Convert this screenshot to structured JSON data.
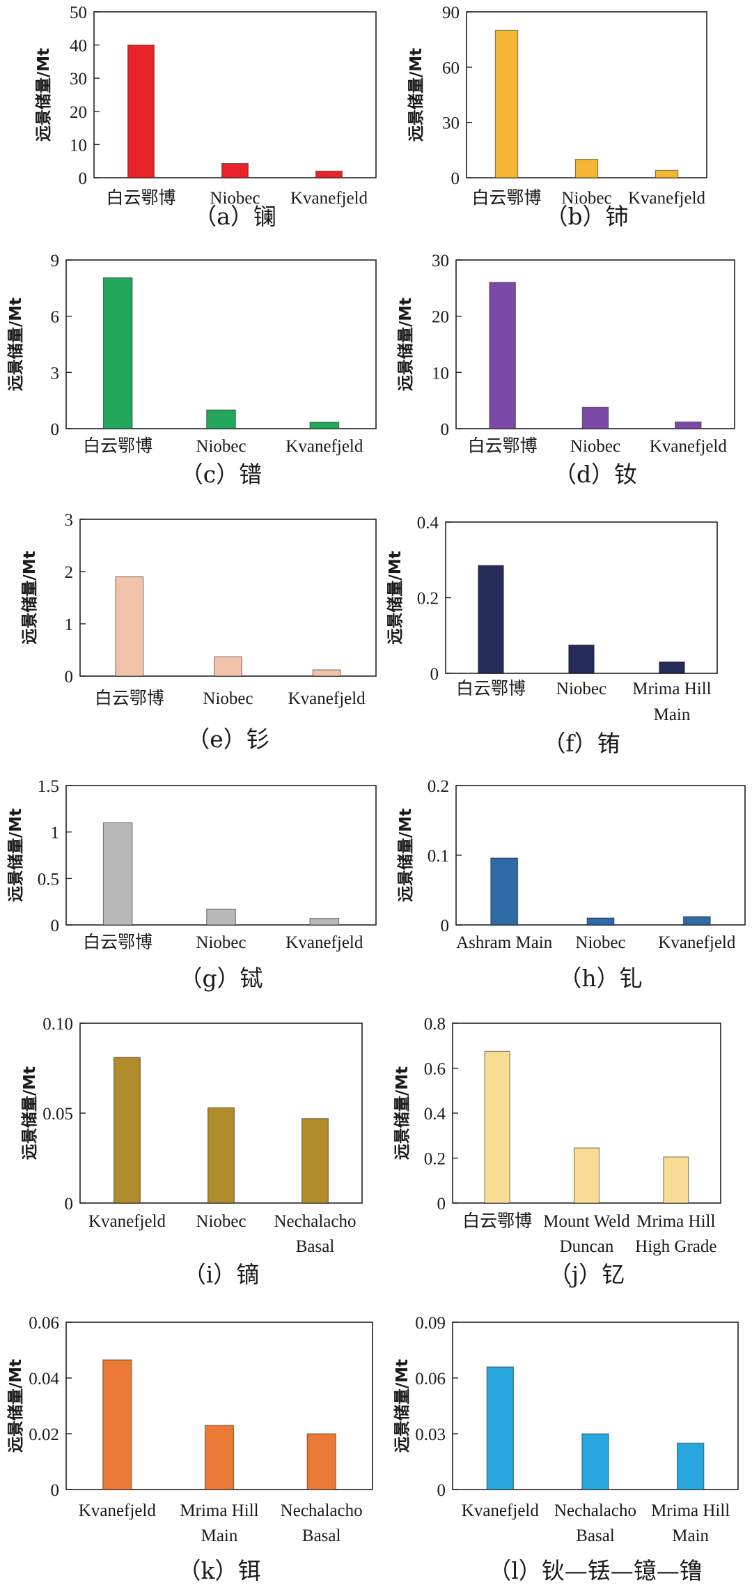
{
  "chart_data": [
    {
      "type": "bar",
      "title": "（a）镧",
      "ylabel": "远景储量/Mt",
      "ylim": [
        0,
        50
      ],
      "yticks": [
        "0",
        "10",
        "20",
        "30",
        "40",
        "50"
      ],
      "categories": [
        [
          "白云鄂博"
        ],
        [
          "Niobec"
        ],
        [
          "Kvanefjeld"
        ]
      ],
      "values": [
        40,
        4.3,
        2
      ],
      "color": "#e8242a"
    },
    {
      "type": "bar",
      "title": "（b）铈",
      "ylabel": "远景储量/Mt",
      "ylim": [
        0,
        90
      ],
      "yticks": [
        "0",
        "30",
        "60",
        "90"
      ],
      "categories": [
        [
          "白云鄂博"
        ],
        [
          "Niobec"
        ],
        [
          "Kvanefjeld"
        ]
      ],
      "values": [
        80,
        10,
        4
      ],
      "color": "#f5b731"
    },
    {
      "type": "bar",
      "title": "（c）镨",
      "ylabel": "远景储量/Mt",
      "ylim": [
        0,
        9
      ],
      "yticks": [
        "0",
        "3",
        "6",
        "9"
      ],
      "categories": [
        [
          "白云鄂博"
        ],
        [
          "Niobec"
        ],
        [
          "Kvanefjeld"
        ]
      ],
      "values": [
        8.05,
        1,
        0.35
      ],
      "color": "#23a75a"
    },
    {
      "type": "bar",
      "title": "（d）钕",
      "ylabel": "远景储量/Mt",
      "ylim": [
        0,
        30
      ],
      "yticks": [
        "0",
        "10",
        "20",
        "30"
      ],
      "categories": [
        [
          "白云鄂博"
        ],
        [
          "Niobec"
        ],
        [
          "Kvanefjeld"
        ]
      ],
      "values": [
        26,
        3.8,
        1.2
      ],
      "color": "#7a4aa6"
    },
    {
      "type": "bar",
      "title": "（e）钐",
      "ylabel": "远景储量/Mt",
      "ylim": [
        0,
        3
      ],
      "yticks": [
        "0",
        "1",
        "2",
        "3"
      ],
      "categories": [
        [
          "白云鄂博"
        ],
        [
          "Niobec"
        ],
        [
          "Kvanefjeld"
        ]
      ],
      "values": [
        1.9,
        0.37,
        0.12
      ],
      "color": "#f2c3aa"
    },
    {
      "type": "bar",
      "title": "（f）铕",
      "ylabel": "远景储量/Mt",
      "ylim": [
        0,
        0.4
      ],
      "yticks": [
        "0",
        "0.2",
        "0.4"
      ],
      "categories": [
        [
          "白云鄂博"
        ],
        [
          "Niobec"
        ],
        [
          "Mrima Hill",
          "Main"
        ]
      ],
      "values": [
        0.285,
        0.075,
        0.03
      ],
      "color": "#252c5a"
    },
    {
      "type": "bar",
      "title": "（g）铽",
      "ylabel": "远景储量/Mt",
      "ylim": [
        0,
        1.5
      ],
      "yticks": [
        "0",
        "0.5",
        "1",
        "1.5"
      ],
      "categories": [
        [
          "白云鄂博"
        ],
        [
          "Niobec"
        ],
        [
          "Kvanefjeld"
        ]
      ],
      "values": [
        1.1,
        0.17,
        0.07
      ],
      "color": "#b9b9b9"
    },
    {
      "type": "bar",
      "title": "（h）钆",
      "ylabel": "远景储量/Mt",
      "ylim": [
        0,
        0.2
      ],
      "yticks": [
        "0",
        "0.1",
        "0.2"
      ],
      "categories": [
        [
          "Ashram Main"
        ],
        [
          "Niobec"
        ],
        [
          "Kvanefjeld"
        ]
      ],
      "values": [
        0.096,
        0.01,
        0.012
      ],
      "color": "#2e6aa5"
    },
    {
      "type": "bar",
      "title": "（i）镝",
      "ylabel": "远景储量/Mt",
      "ylim": [
        0,
        0.1
      ],
      "yticks": [
        "0",
        "0.05",
        "0.10"
      ],
      "categories": [
        [
          "Kvanefjeld"
        ],
        [
          "Niobec"
        ],
        [
          "Nechalacho",
          "Basal"
        ]
      ],
      "values": [
        0.081,
        0.053,
        0.047
      ],
      "color": "#b08c2a"
    },
    {
      "type": "bar",
      "title": "（j）钇",
      "ylabel": "远景储量/Mt",
      "ylim": [
        0,
        0.8
      ],
      "yticks": [
        "0",
        "0.2",
        "0.4",
        "0.6",
        "0.8"
      ],
      "categories": [
        [
          "白云鄂博"
        ],
        [
          "Mount Weld",
          "Duncan"
        ],
        [
          "Mrima Hill",
          "High Grade"
        ]
      ],
      "values": [
        0.675,
        0.245,
        0.205
      ],
      "color": "#f9dc93"
    },
    {
      "type": "bar",
      "title": "（k）铒",
      "ylabel": "远景储量/Mt",
      "ylim": [
        0,
        0.06
      ],
      "yticks": [
        "0",
        "0.02",
        "0.04",
        "0.06"
      ],
      "categories": [
        [
          "Kvanefjeld"
        ],
        [
          "Mrima Hill",
          "Main"
        ],
        [
          "Nechalacho",
          "Basal"
        ]
      ],
      "values": [
        0.0465,
        0.023,
        0.02
      ],
      "color": "#ea7a35"
    },
    {
      "type": "bar",
      "title": "（l）钬—铥—镱—镥",
      "ylabel": "远景储量/Mt",
      "ylim": [
        0,
        0.09
      ],
      "yticks": [
        "0",
        "0.03",
        "0.06",
        "0.09"
      ],
      "categories": [
        [
          "Kvanefjeld"
        ],
        [
          "Nechalacho",
          "Basal"
        ],
        [
          "Mrima Hill",
          "Main"
        ]
      ],
      "values": [
        0.066,
        0.03,
        0.025
      ],
      "color": "#27a7de"
    }
  ]
}
